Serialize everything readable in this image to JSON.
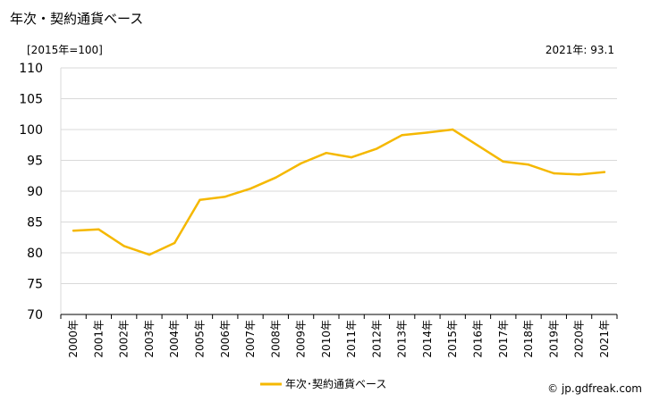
{
  "header": {
    "title": "年次・契約通貨ベース",
    "unit": "[2015年=100]",
    "latest": "2021年: 93.1"
  },
  "footer": {
    "credit": "© jp.gdfreak.com"
  },
  "colors": {
    "series": "#f5b800",
    "grid": "#d9d9d9",
    "axis": "#000000"
  },
  "chart_data": {
    "type": "line",
    "title": "年次・契約通貨ベース",
    "xlabel": "",
    "ylabel": "",
    "ylim": [
      70,
      110
    ],
    "yticks": [
      110,
      105,
      100,
      95,
      90,
      85,
      80,
      75,
      70
    ],
    "grid": true,
    "legend_position": "bottom-center",
    "categories": [
      "2000年",
      "2001年",
      "2002年",
      "2003年",
      "2004年",
      "2005年",
      "2006年",
      "2007年",
      "2008年",
      "2009年",
      "2010年",
      "2011年",
      "2012年",
      "2013年",
      "2014年",
      "2015年",
      "2016年",
      "2017年",
      "2018年",
      "2019年",
      "2020年",
      "2021年"
    ],
    "series": [
      {
        "name": "年次･契約通貨ベース",
        "values": [
          83.6,
          83.8,
          81.1,
          79.7,
          81.6,
          88.6,
          89.1,
          90.4,
          92.2,
          94.5,
          96.2,
          95.5,
          96.9,
          99.1,
          99.5,
          100.0,
          97.4,
          94.8,
          94.3,
          92.9,
          92.7,
          93.1
        ]
      }
    ]
  }
}
